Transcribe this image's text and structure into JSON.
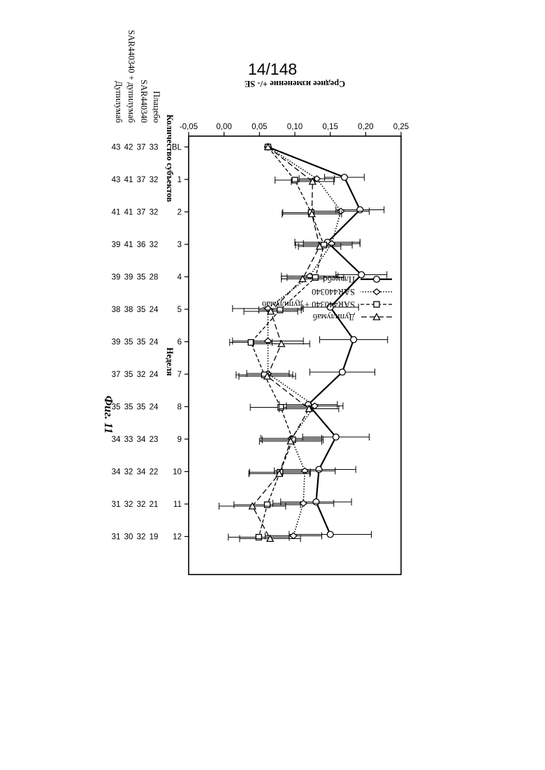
{
  "page": {
    "number": "14/148"
  },
  "chart_data": {
    "type": "line",
    "ylabel": "Среднее изменение +/- SE",
    "xlabel": "Неделя",
    "caption": "Фиг. 11",
    "ylim": [
      -0.05,
      0.25
    ],
    "yticks": [
      "-0,05",
      "0,00",
      "0,05",
      "0,10",
      "0,15",
      "0,20",
      "0,25"
    ],
    "yticks_values": [
      -0.05,
      0,
      0.05,
      0.1,
      0.15,
      0.2,
      0.25
    ],
    "categories": [
      "BL",
      "1",
      "2",
      "3",
      "4",
      "5",
      "6",
      "7",
      "8",
      "9",
      "10",
      "11",
      "12"
    ],
    "legend_position": "upper-center",
    "series": [
      {
        "name": "Плацебо",
        "marker": "circle",
        "dash": "solid",
        "values": [
          0.062,
          0.17,
          0.192,
          0.146,
          0.194,
          0.15,
          0.183,
          0.167,
          0.119,
          0.158,
          0.134,
          0.13,
          0.15
        ],
        "errors": [
          0.0,
          0.028,
          0.034,
          0.046,
          0.036,
          0.04,
          0.048,
          0.046,
          0.041,
          0.047,
          0.052,
          0.05,
          0.058
        ]
      },
      {
        "name": "SAR440340",
        "marker": "diamond",
        "dash": "dotted",
        "values": [
          0.062,
          0.131,
          0.165,
          0.152,
          0.121,
          0.062,
          0.062,
          0.062,
          0.128,
          0.095,
          0.114,
          0.112,
          0.098
        ],
        "errors": [
          0.0,
          0.025,
          0.04,
          0.04,
          0.04,
          0.05,
          0.05,
          0.03,
          0.04,
          0.043,
          0.043,
          0.043,
          0.04
        ]
      },
      {
        "name": "SAR440340 + дупилумаб",
        "marker": "square",
        "dash": "dashed",
        "values": [
          0.062,
          0.1,
          0.123,
          0.141,
          0.129,
          0.079,
          0.038,
          0.057,
          0.08,
          0.097,
          0.079,
          0.061,
          0.049
        ],
        "errors": [
          0.0,
          0.028,
          0.04,
          0.04,
          0.04,
          0.03,
          0.03,
          0.04,
          0.043,
          0.043,
          0.043,
          0.047,
          0.043
        ]
      },
      {
        "name": "Дупилумаб",
        "marker": "triangle",
        "dash": "longdash",
        "values": [
          0.062,
          0.125,
          0.124,
          0.135,
          0.111,
          0.066,
          0.081,
          0.061,
          0.12,
          0.094,
          0.078,
          0.04,
          0.065
        ],
        "errors": [
          0.0,
          0.03,
          0.042,
          0.03,
          0.03,
          0.038,
          0.04,
          0.04,
          0.042,
          0.044,
          0.043,
          0.047,
          0.043
        ]
      }
    ],
    "subjects": {
      "title": "Количество субъектов",
      "rows": [
        {
          "label": "Плацебо",
          "values": [
            "33",
            "32",
            "32",
            "32",
            "28",
            "24",
            "24",
            "24",
            "24",
            "23",
            "22",
            "21",
            "19"
          ]
        },
        {
          "label": "SAR440340",
          "values": [
            "37",
            "37",
            "37",
            "36",
            "35",
            "35",
            "35",
            "32",
            "35",
            "34",
            "34",
            "32",
            "32"
          ]
        },
        {
          "label": "SAR440340 + дупилумаб",
          "values": [
            "42",
            "41",
            "41",
            "41",
            "39",
            "38",
            "35",
            "35",
            "35",
            "33",
            "32",
            "32",
            "30"
          ]
        },
        {
          "label": "Дупилумаб",
          "values": [
            "43",
            "43",
            "41",
            "39",
            "39",
            "38",
            "39",
            "37",
            "35",
            "34",
            "34",
            "31",
            "31"
          ]
        }
      ]
    }
  }
}
